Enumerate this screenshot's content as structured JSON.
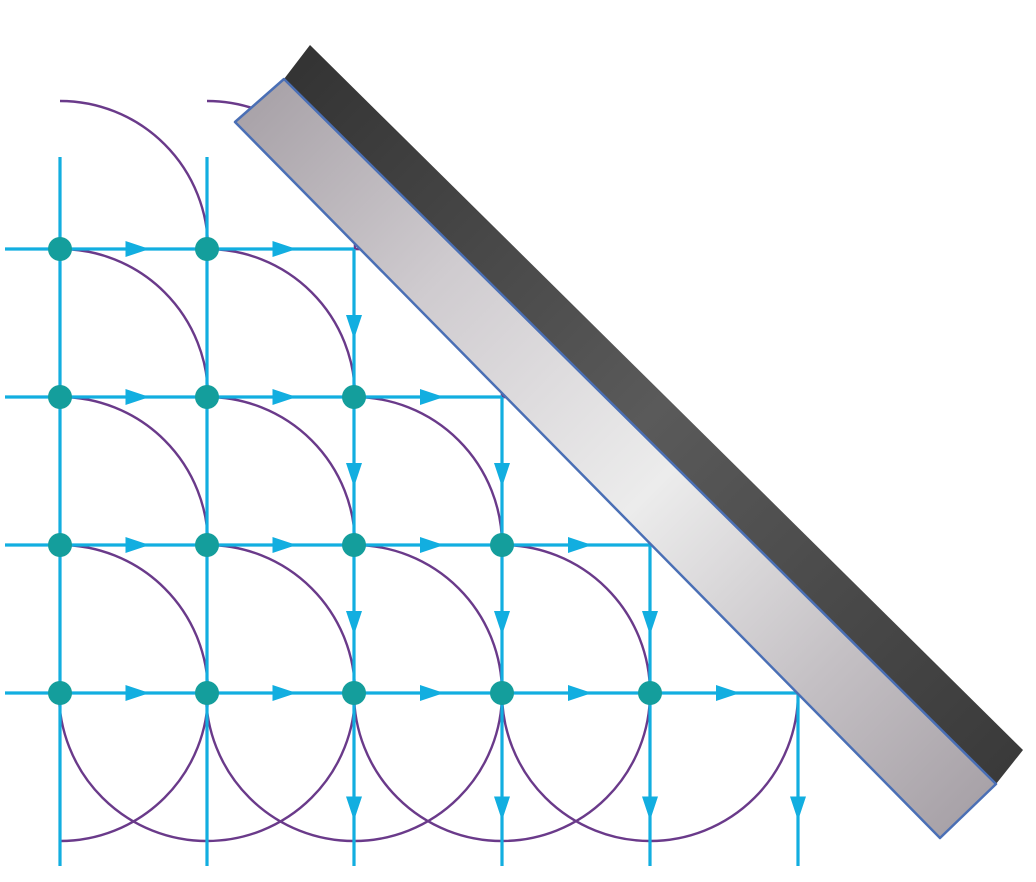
{
  "diagram": {
    "type": "huygens-wavelet-reflection",
    "grid": {
      "columns": 6,
      "rows": 4
    },
    "colors": {
      "ray": "#12aee0",
      "node": "#149e9c",
      "wavelet": "#6a3a8a",
      "mirror_face_light": "#ececec",
      "mirror_face_mid": "#b8b4b8",
      "mirror_back": "#3a3a3a",
      "mirror_edge": "#4a6fb5"
    },
    "icons": {
      "node": "wavefront-point-icon",
      "arrow": "direction-arrow-icon",
      "wavelet": "wavelet-arc-icon",
      "mirror": "mirror-icon"
    }
  }
}
